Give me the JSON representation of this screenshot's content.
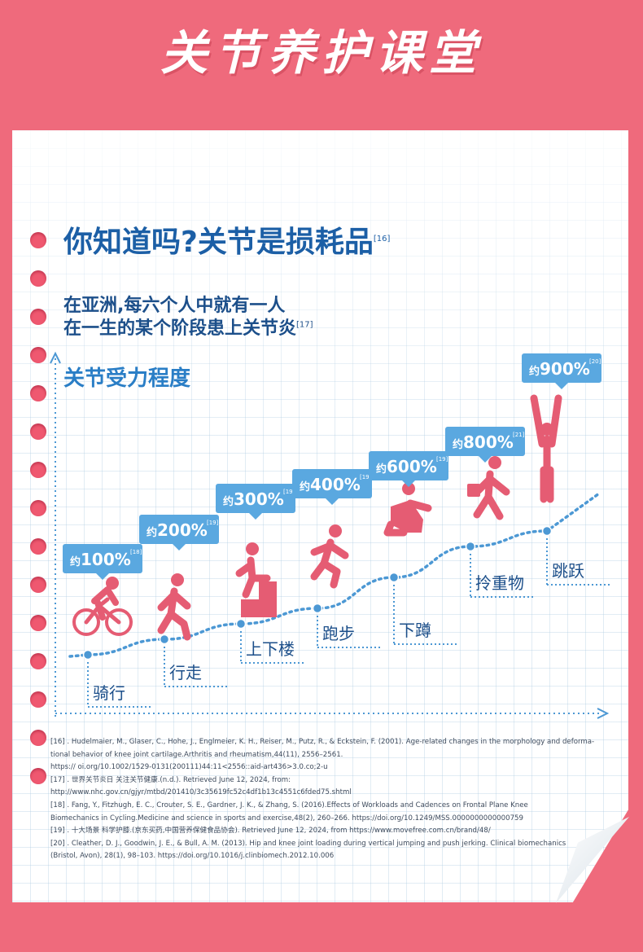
{
  "banner": {
    "title": "关节养护课堂"
  },
  "header": {
    "title": "你知道吗?关节是损耗品",
    "title_ref": "[16]",
    "subtitle_line1": "在亚洲,每六个人中就有一人",
    "subtitle_line2": "在一生的某个阶段患上关节炎",
    "subtitle_ref": "[17]"
  },
  "chart_data": {
    "type": "line",
    "title": "关节受力程度",
    "categories": [
      "骑行",
      "行走",
      "上下楼",
      "跑步",
      "下蹲",
      "拎重物",
      "跳跃"
    ],
    "values": [
      100,
      200,
      300,
      400,
      600,
      800,
      900
    ],
    "value_labels": [
      "约100%",
      "约200%",
      "约300%",
      "约400%",
      "约600%",
      "约800%",
      "约900%"
    ],
    "refs": [
      "[18]",
      "[19]",
      "[19]",
      "[19]",
      "[19]",
      "[21]",
      "[20]"
    ],
    "icons": [
      "cycling-icon",
      "walking-icon",
      "stairs-icon",
      "running-icon",
      "squatting-icon",
      "carrying-icon",
      "jumping-icon"
    ],
    "grid": true,
    "colors": {
      "line": "#4c98d4",
      "bubble": "#5aa8e0",
      "figure": "#e55c73"
    }
  },
  "references": [
    "[16] . Hudelmaier, M., Glaser, C., Hohe, J., Englmeier, K. H., Reiser, M., Putz, R., & Eckstein, F. (2001). Age-related changes in the morphology and deforma-",
    "tional behavior of knee joint cartilage.Arthritis and rheumatism,44(11), 2556–2561.",
    "https:// oi.org/10.1002/1529-0131(200111)44:11<2556::aid-art436>3.0.co;2-u",
    "[17] . 世界关节炎日 关注关节健康.(n.d.). Retrieved June 12, 2024, from:",
    "http://www.nhc.gov.cn/gjyr/mtbd/201410/3c35619fc52c4df1b13c4551c6fded75.shtml",
    "[18] . Fang, Y., Fitzhugh, E. C., Crouter, S. E., Gardner, J. K., & Zhang, S. (2016).Effects of Workloads and Cadences on Frontal Plane Knee",
    "Biomechanics in Cycling.Medicine and science in sports and exercise,48(2), 260–266. https://doi.org/10.1249/MSS.0000000000000759",
    "[19] . 十大场景 科学护膝.(京东买药,中国营养保健食品协会). Retrieved June 12, 2024, from https://www.movefree.com.cn/brand/48/",
    "[20] . Cleather, D. J., Goodwin, J. E., & Bull, A. M. (2013). Hip and knee joint loading during vertical jumping and push jerking. Clinical biomechanics",
    "(Bristol, Avon), 28(1), 98–103. https://doi.org/10.1016/j.clinbiomech.2012.10.006"
  ]
}
